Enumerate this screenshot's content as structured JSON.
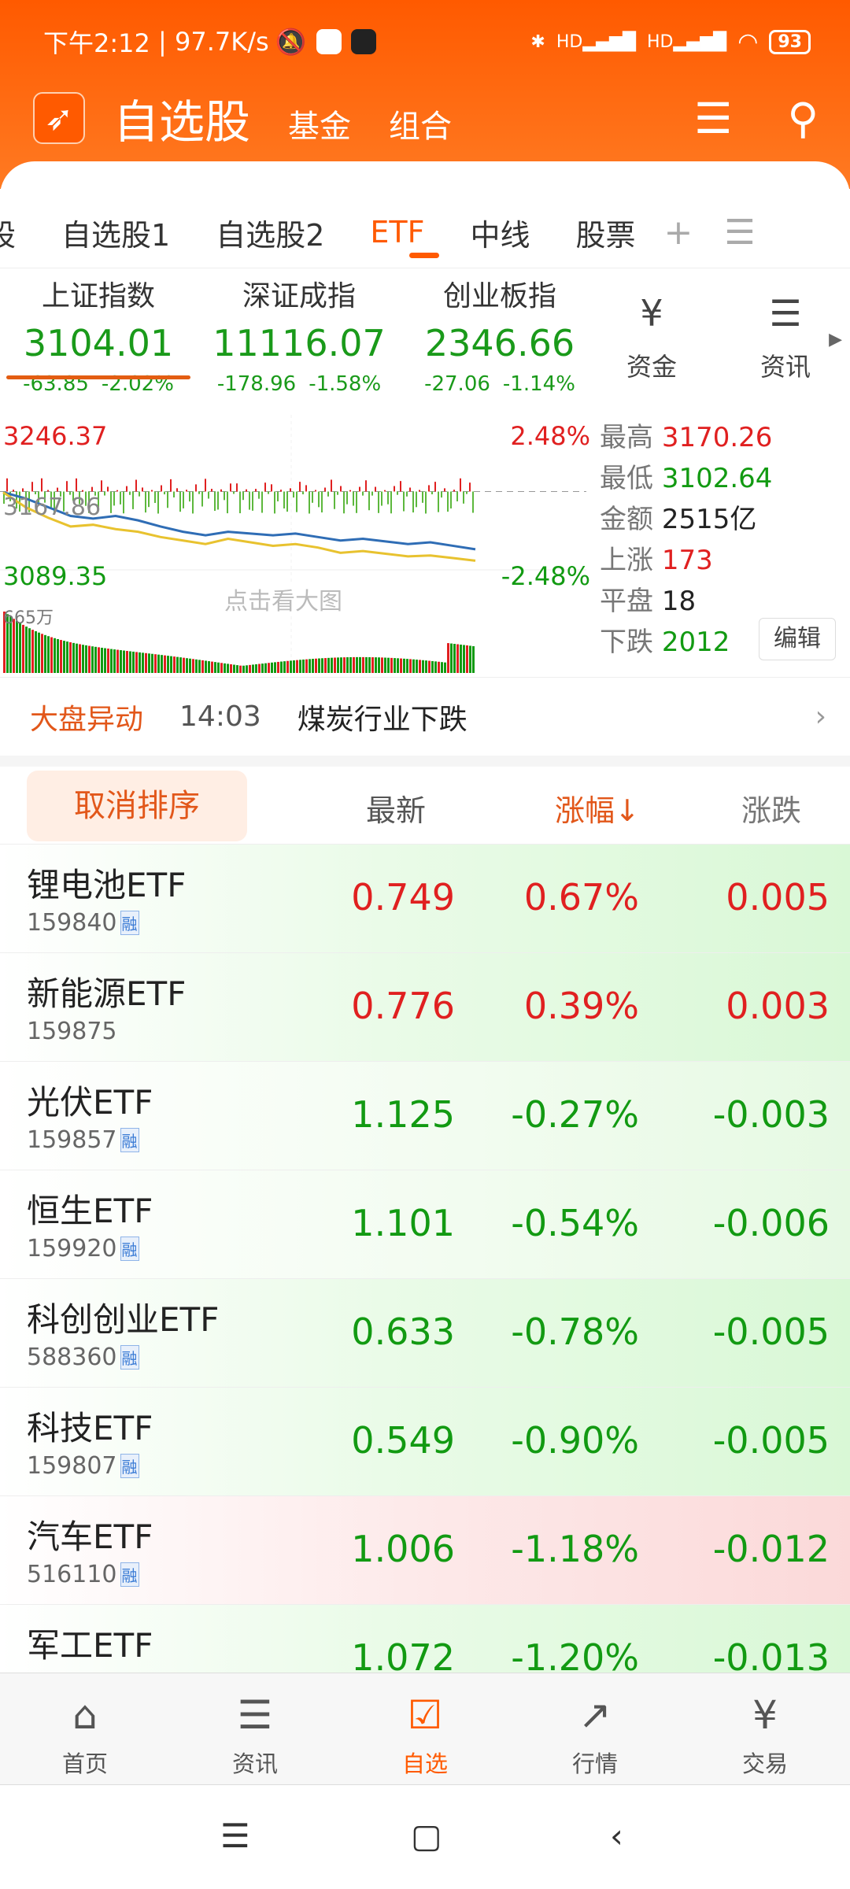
{
  "status_bar": {
    "time": "下午2:12",
    "speed": "97.7K/s",
    "battery": "93"
  },
  "header": {
    "title": "自选股",
    "tabs": [
      "基金",
      "组合"
    ]
  },
  "tabs": {
    "items": [
      "股",
      "自选股1",
      "自选股2",
      "ETF",
      "中线",
      "股票"
    ],
    "active": "ETF",
    "add": "+",
    "menu": "☰"
  },
  "indices": [
    {
      "name": "上证指数",
      "value": "3104.01",
      "change": "-63.85",
      "pct": "-2.02%"
    },
    {
      "name": "深证成指",
      "value": "11116.07",
      "change": "-178.96",
      "pct": "-1.58%"
    },
    {
      "name": "创业板指",
      "value": "2346.66",
      "change": "-27.06",
      "pct": "-1.14%"
    }
  ],
  "quick": [
    {
      "label": "资金",
      "icon": "yen-refresh-icon"
    },
    {
      "label": "资讯",
      "icon": "document-icon"
    }
  ],
  "mini_chart": {
    "top": "3246.37",
    "bottom": "3089.35",
    "mid": "3167.86",
    "top_pct": "2.48%",
    "bottom_pct": "-2.48%",
    "volume_label": "665万",
    "hint": "点击看大图",
    "index_line": [
      3167,
      3160,
      3150,
      3140,
      3137,
      3140,
      3135,
      3128,
      3122,
      3118,
      3122,
      3120,
      3118,
      3120,
      3116,
      3112,
      3114,
      3111,
      3108,
      3110,
      3106,
      3102
    ],
    "avg_line": [
      3167,
      3150,
      3138,
      3128,
      3130,
      3125,
      3122,
      3116,
      3112,
      3108,
      3114,
      3110,
      3106,
      3108,
      3104,
      3098,
      3100,
      3097,
      3094,
      3095,
      3092,
      3089
    ]
  },
  "stats": {
    "high_label": "最高",
    "high": "3170.26",
    "low_label": "最低",
    "low": "3102.64",
    "amount_label": "金额",
    "amount": "2515亿",
    "up_label": "上涨",
    "up": "173",
    "flat_label": "平盘",
    "flat": "18",
    "down_label": "下跌",
    "down": "2012",
    "edit": "编辑"
  },
  "market_move": {
    "label": "大盘异动",
    "time": "14:03",
    "text": "煤炭行业下跌"
  },
  "sort_header": {
    "cancel": "取消排序",
    "latest": "最新",
    "pct": "涨幅↓",
    "change": "涨跌"
  },
  "rows": [
    {
      "name": "锂电池ETF",
      "code": "159840",
      "margin": "融",
      "price": "0.749",
      "pct": "0.67%",
      "change": "0.005",
      "dir": "up",
      "bg": "green"
    },
    {
      "name": "新能源ETF",
      "code": "159875",
      "margin": "",
      "price": "0.776",
      "pct": "0.39%",
      "change": "0.003",
      "dir": "up",
      "bg": "green"
    },
    {
      "name": "光伏ETF",
      "code": "159857",
      "margin": "融",
      "price": "1.125",
      "pct": "-0.27%",
      "change": "-0.003",
      "dir": "down",
      "bg": "lightgreen"
    },
    {
      "name": "恒生ETF",
      "code": "159920",
      "margin": "融",
      "price": "1.101",
      "pct": "-0.54%",
      "change": "-0.006",
      "dir": "down",
      "bg": "lightgreen"
    },
    {
      "name": "科创创业ETF",
      "code": "588360",
      "margin": "融",
      "price": "0.633",
      "pct": "-0.78%",
      "change": "-0.005",
      "dir": "down",
      "bg": "green"
    },
    {
      "name": "科技ETF",
      "code": "159807",
      "margin": "融",
      "price": "0.549",
      "pct": "-0.90%",
      "change": "-0.005",
      "dir": "down",
      "bg": "green"
    },
    {
      "name": "汽车ETF",
      "code": "516110",
      "margin": "融",
      "price": "1.006",
      "pct": "-1.18%",
      "change": "-0.012",
      "dir": "down",
      "bg": "red"
    },
    {
      "name": "军工ETF",
      "code": "",
      "margin": "",
      "price": "1.072",
      "pct": "-1.20%",
      "change": "-0.013",
      "dir": "down",
      "bg": "green"
    }
  ],
  "bottom_nav": [
    {
      "label": "首页",
      "icon": "home-icon"
    },
    {
      "label": "资讯",
      "icon": "news-icon"
    },
    {
      "label": "自选",
      "icon": "watchlist-icon",
      "active": true
    },
    {
      "label": "行情",
      "icon": "market-icon"
    },
    {
      "label": "交易",
      "icon": "trade-icon"
    }
  ],
  "colors": {
    "brand": "#ff5a00",
    "up": "#e02020",
    "down": "#129a12"
  }
}
